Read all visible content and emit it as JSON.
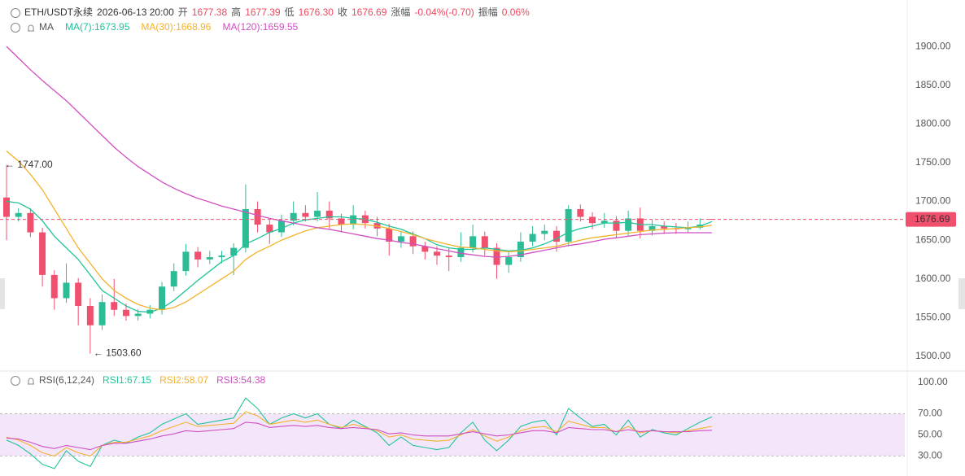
{
  "chart_data": {
    "type": "candlestick",
    "header": [
      {
        "text": "ETH/USDT永续",
        "color": "#333333"
      },
      {
        "text": "2026-06-13 20:00",
        "color": "#333333"
      },
      {
        "text": "开",
        "color": "#555555"
      },
      {
        "text": "1677.38",
        "color": "#e8495f"
      },
      {
        "text": "高",
        "color": "#555555"
      },
      {
        "text": "1677.39",
        "color": "#e8495f"
      },
      {
        "text": "低",
        "color": "#555555"
      },
      {
        "text": "1676.30",
        "color": "#e8495f"
      },
      {
        "text": "收",
        "color": "#555555"
      },
      {
        "text": "1676.69",
        "color": "#e8495f"
      },
      {
        "text": "涨幅",
        "color": "#555555"
      },
      {
        "text": "-0.04%(-0.70)",
        "color": "#e8495f"
      },
      {
        "text": "振幅",
        "color": "#555555"
      },
      {
        "text": "0.06%",
        "color": "#e8495f"
      }
    ],
    "ma_label": "MA",
    "up_color": "#2dbd96",
    "down_color": "#f0506e",
    "open": [
      1705,
      1680,
      1685,
      1660,
      1605,
      1575,
      1595,
      1565,
      1540,
      1570,
      1560,
      1552,
      1555,
      1560,
      1590,
      1610,
      1635,
      1625,
      1628,
      1630,
      1640,
      1690,
      1670,
      1660,
      1675,
      1685,
      1680,
      1688,
      1678,
      1670,
      1682,
      1672,
      1665,
      1648,
      1655,
      1642,
      1635,
      1630,
      1628,
      1640,
      1655,
      1640,
      1618,
      1628,
      1648,
      1658,
      1662,
      1648,
      1690,
      1680,
      1672,
      1675,
      1662,
      1678,
      1662,
      1668,
      1665,
      1664,
      1666,
      1677.38
    ],
    "high": [
      1747,
      1691,
      1691,
      1666,
      1611,
      1620,
      1601,
      1575,
      1580,
      1600,
      1568,
      1561,
      1566,
      1596,
      1620,
      1645,
      1641,
      1636,
      1636,
      1646,
      1722,
      1700,
      1676,
      1683,
      1700,
      1695,
      1712,
      1700,
      1684,
      1695,
      1688,
      1680,
      1671,
      1661,
      1661,
      1648,
      1642,
      1640,
      1660,
      1670,
      1661,
      1646,
      1636,
      1660,
      1668,
      1670,
      1668,
      1695,
      1696,
      1686,
      1685,
      1681,
      1688,
      1692,
      1676,
      1674,
      1672,
      1674,
      1678,
      1677.39
    ],
    "low": [
      1650,
      1674,
      1654,
      1590,
      1560,
      1569,
      1540,
      1503.6,
      1534,
      1552,
      1546,
      1546,
      1549,
      1554,
      1584,
      1604,
      1615,
      1619,
      1620,
      1605,
      1634,
      1660,
      1645,
      1654,
      1669,
      1674,
      1674,
      1665,
      1660,
      1664,
      1665,
      1655,
      1630,
      1640,
      1632,
      1625,
      1618,
      1610,
      1622,
      1634,
      1630,
      1600,
      1608,
      1622,
      1642,
      1650,
      1635,
      1642,
      1674,
      1664,
      1666,
      1652,
      1656,
      1652,
      1656,
      1658,
      1658,
      1660,
      1664,
      1676.3
    ],
    "close": [
      1680,
      1685,
      1660,
      1605,
      1575,
      1595,
      1565,
      1540,
      1570,
      1560,
      1552,
      1555,
      1560,
      1590,
      1610,
      1635,
      1625,
      1628,
      1630,
      1640,
      1690,
      1670,
      1660,
      1675,
      1685,
      1680,
      1688,
      1678,
      1670,
      1682,
      1672,
      1665,
      1648,
      1655,
      1642,
      1635,
      1630,
      1628,
      1640,
      1655,
      1640,
      1618,
      1628,
      1648,
      1658,
      1662,
      1648,
      1690,
      1680,
      1672,
      1675,
      1662,
      1678,
      1662,
      1668,
      1665,
      1664,
      1666,
      1670,
      1676.69
    ],
    "ma_series": [
      {
        "name": "MA(7):1673.95",
        "color": "#1fc39a",
        "values": [
          1700,
          1698,
          1690,
          1675,
          1655,
          1640,
          1625,
          1605,
          1585,
          1575,
          1565,
          1558,
          1557,
          1562,
          1572,
          1585,
          1598,
          1610,
          1622,
          1630,
          1645,
          1652,
          1660,
          1665,
          1672,
          1676,
          1678,
          1680,
          1680,
          1678,
          1677,
          1673,
          1668,
          1664,
          1658,
          1652,
          1644,
          1640,
          1638,
          1638,
          1640,
          1638,
          1636,
          1637,
          1640,
          1645,
          1652,
          1660,
          1665,
          1668,
          1672,
          1672,
          1673,
          1670,
          1670,
          1668,
          1667,
          1666,
          1668,
          1673.95
        ]
      },
      {
        "name": "MA(30):1668.96",
        "color": "#f3b22c",
        "values": [
          1765,
          1752,
          1735,
          1715,
          1690,
          1665,
          1640,
          1620,
          1600,
          1585,
          1575,
          1567,
          1562,
          1560,
          1563,
          1570,
          1580,
          1590,
          1600,
          1610,
          1625,
          1635,
          1642,
          1650,
          1656,
          1662,
          1666,
          1668,
          1670,
          1671,
          1670,
          1668,
          1665,
          1661,
          1657,
          1652,
          1648,
          1644,
          1641,
          1640,
          1638,
          1636,
          1635,
          1636,
          1638,
          1640,
          1642,
          1646,
          1650,
          1653,
          1655,
          1657,
          1659,
          1661,
          1663,
          1664,
          1665,
          1666,
          1667,
          1668.96
        ]
      },
      {
        "name": "MA(120):1659.55",
        "color": "#d04fc2",
        "values": [
          1900,
          1885,
          1870,
          1856,
          1843,
          1830,
          1815,
          1800,
          1785,
          1770,
          1757,
          1745,
          1735,
          1725,
          1717,
          1710,
          1704,
          1699,
          1694,
          1690,
          1686,
          1682,
          1678,
          1675,
          1672,
          1669,
          1666,
          1664,
          1661,
          1658,
          1655,
          1652,
          1650,
          1647,
          1645,
          1642,
          1639,
          1636,
          1633,
          1631,
          1629,
          1628,
          1629,
          1631,
          1634,
          1637,
          1640,
          1643,
          1645,
          1648,
          1651,
          1653,
          1655,
          1657,
          1658,
          1659,
          1659.5,
          1659.5,
          1659.5,
          1659.55
        ]
      }
    ],
    "ylim": [
      1482,
      1960
    ],
    "yticks": [
      {
        "value": 1500,
        "label": "1500.00"
      },
      {
        "value": 1550,
        "label": "1550.00"
      },
      {
        "value": 1600,
        "label": "1600.00"
      },
      {
        "value": 1650,
        "label": "1650.00"
      },
      {
        "value": 1700,
        "label": "1700.00"
      },
      {
        "value": 1750,
        "label": "1750.00"
      },
      {
        "value": 1800,
        "label": "1800.00"
      },
      {
        "value": 1850,
        "label": "1850.00"
      },
      {
        "value": 1900,
        "label": "1900.00"
      }
    ],
    "max_label": "← 1747.00",
    "min_label": "← 1503.60",
    "rsi": {
      "label": "RSI(6,12,24)",
      "ylim": [
        11,
        109
      ],
      "yticks": [
        {
          "value": 30,
          "label": "30.00"
        },
        {
          "value": 50,
          "label": "50.00"
        },
        {
          "value": 70,
          "label": "70.00"
        },
        {
          "value": 100,
          "label": "100.00"
        }
      ],
      "band": [
        30,
        70
      ],
      "band_color": "#f3e6fb",
      "series": [
        {
          "name": "RSI1:67.15",
          "color": "#1fc39a",
          "values": [
            45,
            40,
            32,
            22,
            18,
            35,
            25,
            20,
            40,
            45,
            42,
            48,
            52,
            60,
            65,
            70,
            60,
            62,
            64,
            66,
            85,
            75,
            60,
            66,
            70,
            66,
            70,
            60,
            56,
            64,
            58,
            52,
            40,
            48,
            40,
            38,
            36,
            38,
            52,
            62,
            45,
            35,
            45,
            58,
            62,
            64,
            50,
            75,
            66,
            58,
            60,
            50,
            64,
            48,
            55,
            52,
            50,
            56,
            62,
            67.15
          ]
        },
        {
          "name": "RSI2:58.07",
          "color": "#f3b22c",
          "values": [
            48,
            45,
            40,
            33,
            30,
            38,
            33,
            30,
            40,
            43,
            43,
            46,
            49,
            54,
            58,
            62,
            58,
            59,
            60,
            61,
            72,
            68,
            60,
            62,
            64,
            62,
            64,
            60,
            57,
            60,
            57,
            54,
            48,
            50,
            46,
            45,
            44,
            45,
            50,
            55,
            49,
            44,
            48,
            54,
            57,
            58,
            53,
            63,
            60,
            57,
            57,
            53,
            58,
            52,
            54,
            53,
            52,
            54,
            56,
            58.07
          ]
        },
        {
          "name": "RSI3:54.38",
          "color": "#d04fc2",
          "values": [
            47,
            46,
            43,
            39,
            37,
            40,
            38,
            36,
            40,
            42,
            42,
            44,
            46,
            49,
            51,
            54,
            53,
            54,
            55,
            56,
            62,
            61,
            57,
            58,
            59,
            58,
            59,
            57,
            56,
            57,
            56,
            55,
            51,
            52,
            50,
            49,
            49,
            49,
            51,
            53,
            51,
            49,
            50,
            52,
            54,
            54,
            52,
            57,
            56,
            55,
            55,
            53,
            55,
            53,
            54,
            53,
            53,
            53,
            54,
            54.38
          ]
        }
      ]
    }
  }
}
